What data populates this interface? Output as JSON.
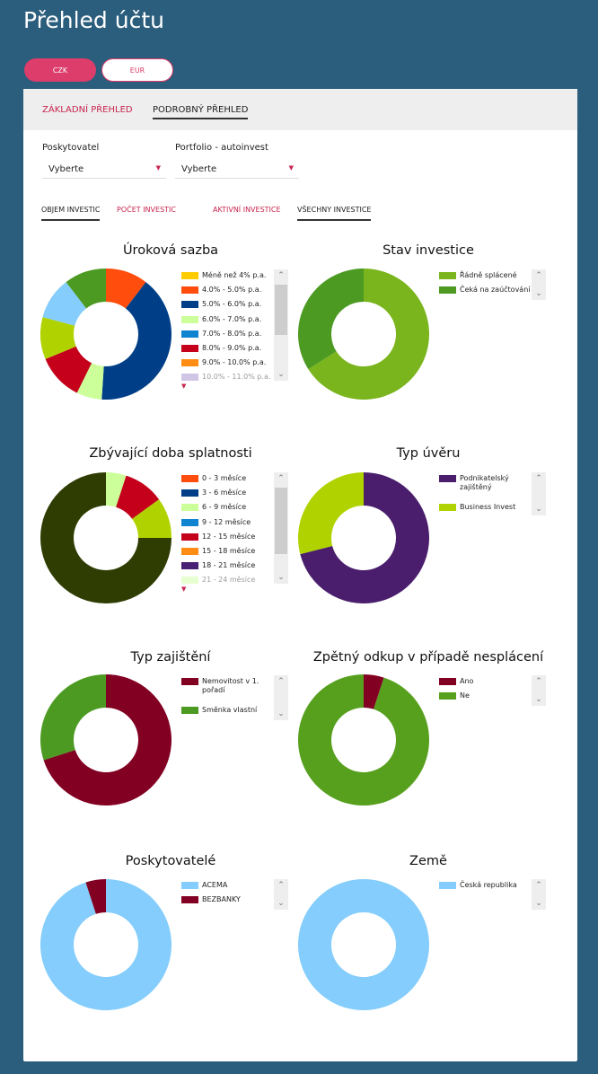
{
  "page": {
    "title": "Přehled účtu"
  },
  "currency": {
    "czk": "CZK",
    "eur": "EUR"
  },
  "tabs": {
    "basic": "ZÁKLADNÍ PŘEHLED",
    "detail": "PODROBNÝ PŘEHLED"
  },
  "filters": {
    "provider_label": "Poskytovatel",
    "provider_value": "Vyberte",
    "portfolio_label": "Portfolio - autoinvest",
    "portfolio_value": "Vyberte"
  },
  "subtabs": {
    "volume": "OBJEM INVESTIC",
    "count": "POČET INVESTIC",
    "active": "AKTIVNÍ INVESTICE",
    "all": "VŠECHNY INVESTICE"
  },
  "chart_data": [
    {
      "type": "pie",
      "title": "Úroková sazba",
      "series": [
        {
          "label": "Méně než 4% p.a.",
          "value": 0,
          "color": "#ffcc00"
        },
        {
          "label": "4.0% - 5.0% p.a.",
          "value": 10,
          "color": "#ff4d0d"
        },
        {
          "label": "5.0% - 6.0% p.a.",
          "value": 39,
          "color": "#003f88"
        },
        {
          "label": "6.0% - 7.0% p.a.",
          "value": 6,
          "color": "#ccff99"
        },
        {
          "label": "7.0% - 8.0% p.a.",
          "value": 0,
          "color": "#0f84d0"
        },
        {
          "label": "8.0% - 9.0% p.a.",
          "value": 11,
          "color": "#c4001b"
        },
        {
          "label": "9.0% - 10.0% p.a.",
          "value": 0,
          "color": "#ff8c14"
        },
        {
          "label": "10.0% - 11.0% p.a.",
          "value": 0,
          "color": "#9b7fc9"
        },
        {
          "label": "",
          "value": 10,
          "color": "#b0d300"
        },
        {
          "label": "",
          "value": 10,
          "color": "#84cdfc"
        },
        {
          "label": "",
          "value": 10,
          "color": "#4c9a22"
        }
      ]
    },
    {
      "type": "pie",
      "title": "Stav investice",
      "series": [
        {
          "label": "Řádně splácené",
          "value": 66,
          "color": "#7ab51d"
        },
        {
          "label": "Čeká na zaúčtování",
          "value": 34,
          "color": "#4c9a22"
        }
      ]
    },
    {
      "type": "pie",
      "title": "Zbývající doba splatnosti",
      "series": [
        {
          "label": "0 - 3 měsíce",
          "value": 0,
          "color": "#ff4d0d"
        },
        {
          "label": "3 - 6 měsíce",
          "value": 0,
          "color": "#003f88"
        },
        {
          "label": "6 - 9 měsíce",
          "value": 5,
          "color": "#ccff99"
        },
        {
          "label": "9 - 12 měsíce",
          "value": 0,
          "color": "#0f84d0"
        },
        {
          "label": "12 - 15 měsíce",
          "value": 10,
          "color": "#c4001b"
        },
        {
          "label": "15 - 18 měsíce",
          "value": 0,
          "color": "#ff8c14"
        },
        {
          "label": "18 - 21 měsíce",
          "value": 0,
          "color": "#492174"
        },
        {
          "label": "21 - 24 měsíce",
          "value": 0,
          "color": "#ccff99"
        },
        {
          "label": "",
          "value": 10,
          "color": "#b0d300"
        },
        {
          "label": "",
          "value": 75,
          "color": "#2f3c02"
        }
      ]
    },
    {
      "type": "pie",
      "title": "Typ úvěru",
      "series": [
        {
          "label": "Podnikatelský zajištěný",
          "value": 71,
          "color": "#4a1e6c"
        },
        {
          "label": "Business Invest",
          "value": 29,
          "color": "#b0d300"
        }
      ]
    },
    {
      "type": "pie",
      "title": "Typ zajištění",
      "series": [
        {
          "label": "Nemovitost v 1. pořadí",
          "value": 70,
          "color": "#820022"
        },
        {
          "label": "Směnka vlastní",
          "value": 30,
          "color": "#4c9a22"
        }
      ]
    },
    {
      "type": "pie",
      "title": "Zpětný odkup v případě nesplácení",
      "series": [
        {
          "label": "Ano",
          "value": 5,
          "color": "#820022"
        },
        {
          "label": "Ne",
          "value": 95,
          "color": "#57a01e"
        }
      ]
    },
    {
      "type": "pie",
      "title": "Poskytovatelé",
      "series": [
        {
          "label": "ACEMA",
          "value": 95,
          "color": "#84cdfc"
        },
        {
          "label": "BEZBANKY",
          "value": 5,
          "color": "#820022"
        }
      ]
    },
    {
      "type": "pie",
      "title": "Země",
      "series": [
        {
          "label": "Česká republika",
          "value": 100,
          "color": "#84cdfc"
        }
      ]
    }
  ]
}
